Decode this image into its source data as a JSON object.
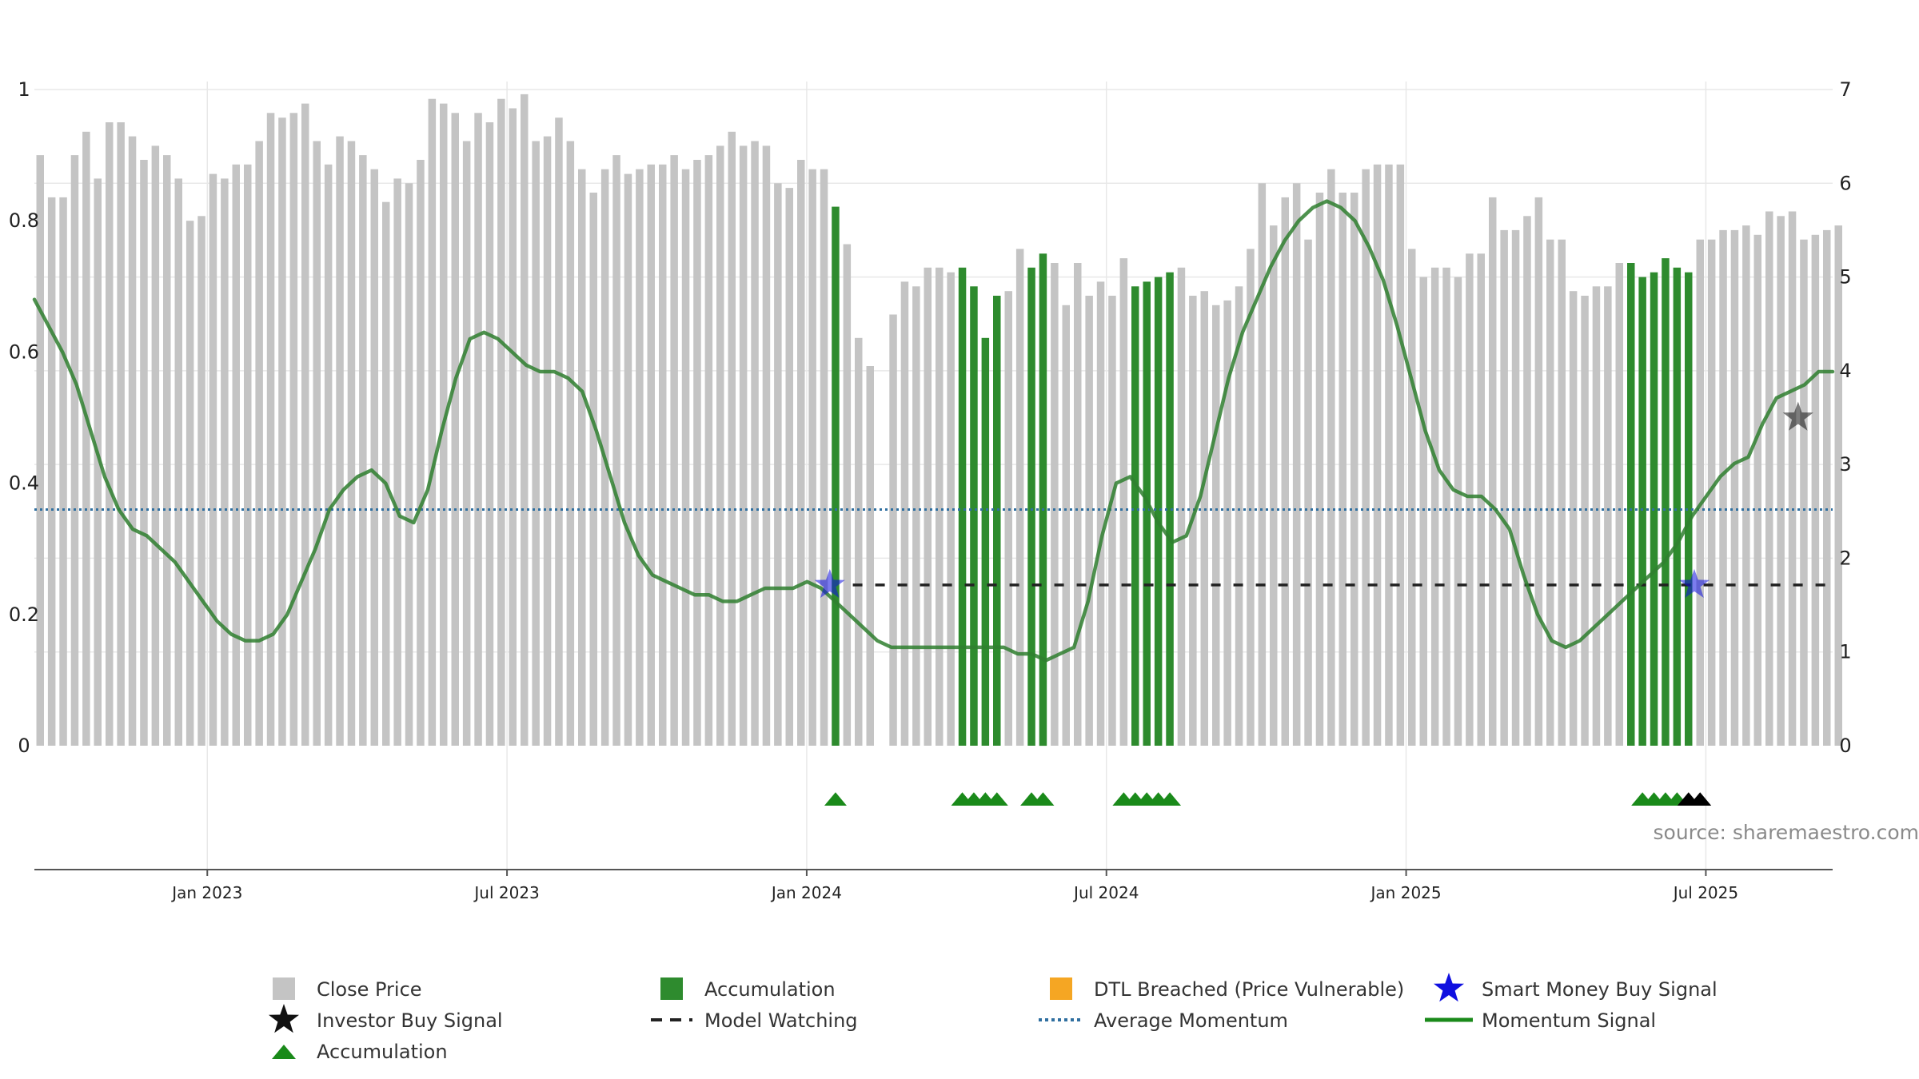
{
  "chart_data": {
    "type": "bar",
    "title": "",
    "xlabel": "",
    "ylabel": "",
    "source_label": "source: sharemaestro.com",
    "left_axis": {
      "ylim": [
        0,
        1
      ],
      "ticks": [
        0,
        0.2,
        0.4,
        0.6,
        0.8,
        1
      ],
      "tick_labels": [
        "0",
        "0.2",
        "0.4",
        "0.6",
        "0.8",
        "1"
      ]
    },
    "right_axis": {
      "ylim": [
        0,
        7
      ],
      "ticks": [
        0,
        1,
        2,
        3,
        4,
        5,
        6,
        7
      ],
      "tick_labels": [
        "0",
        "1",
        "2",
        "3",
        "4",
        "5",
        "6",
        "7"
      ]
    },
    "x_range_weeks": [
      0,
      156
    ],
    "x_ticks": [
      {
        "label": "Jan 2023",
        "week": 15
      },
      {
        "label": "Jul 2023",
        "week": 41
      },
      {
        "label": "Jan 2024",
        "week": 67
      },
      {
        "label": "Jul 2024",
        "week": 93
      },
      {
        "label": "Jan 2025",
        "week": 119
      },
      {
        "label": "Jul 2025",
        "week": 145
      }
    ],
    "grid": true,
    "close_price_values": [
      6.3,
      5.85,
      5.85,
      6.3,
      6.55,
      6.05,
      6.65,
      6.65,
      6.5,
      6.25,
      6.4,
      6.3,
      6.05,
      5.6,
      5.65,
      6.1,
      6.05,
      6.2,
      6.2,
      6.45,
      6.75,
      6.7,
      6.75,
      6.85,
      6.45,
      6.2,
      6.5,
      6.45,
      6.3,
      6.15,
      5.8,
      6.05,
      6.0,
      6.25,
      6.9,
      6.85,
      6.75,
      6.45,
      6.75,
      6.65,
      6.9,
      6.8,
      6.95,
      6.45,
      6.5,
      6.7,
      6.45,
      6.15,
      5.9,
      6.15,
      6.3,
      6.1,
      6.15,
      6.2,
      6.2,
      6.3,
      6.15,
      6.25,
      6.3,
      6.4,
      6.55,
      6.4,
      6.45,
      6.4,
      6.0,
      5.95,
      6.25,
      6.15,
      6.15,
      5.75,
      5.35,
      4.35,
      4.05,
      0,
      4.6,
      4.95,
      4.9,
      5.1,
      5.1,
      5.05,
      5.1,
      4.9,
      4.35,
      4.8,
      4.85,
      5.3,
      5.1,
      5.25,
      5.15,
      4.7,
      5.15,
      4.8,
      4.95,
      4.8,
      5.2,
      4.9,
      4.95,
      5.0,
      5.05,
      5.1,
      4.8,
      4.85,
      4.7,
      4.75,
      4.9,
      5.3,
      6.0,
      5.55,
      5.85,
      6.0,
      5.4,
      5.9,
      6.15,
      5.9,
      5.9,
      6.15,
      6.2,
      6.2,
      6.2,
      5.3,
      5.0,
      5.1,
      5.1,
      5.0,
      5.25,
      5.25,
      5.85,
      5.5,
      5.5,
      5.65,
      5.85,
      5.4,
      5.4,
      4.85,
      4.8,
      4.9,
      4.9,
      5.15,
      5.15,
      5.0,
      5.05,
      5.2,
      5.1,
      5.05,
      5.4,
      5.4,
      5.5,
      5.5,
      5.55,
      5.45,
      5.7,
      5.65,
      5.7,
      5.4,
      5.45,
      5.5,
      5.55
    ],
    "accumulation_bar_weeks": [
      69,
      80,
      81,
      82,
      83,
      86,
      87,
      95,
      96,
      97,
      98,
      138,
      139,
      140,
      141,
      142,
      143
    ],
    "momentum_signal_values": [
      0.68,
      0.64,
      0.6,
      0.55,
      0.48,
      0.41,
      0.36,
      0.33,
      0.32,
      0.3,
      0.28,
      0.25,
      0.22,
      0.19,
      0.17,
      0.16,
      0.16,
      0.17,
      0.2,
      0.25,
      0.3,
      0.36,
      0.39,
      0.41,
      0.42,
      0.4,
      0.35,
      0.34,
      0.39,
      0.48,
      0.56,
      0.62,
      0.63,
      0.62,
      0.6,
      0.58,
      0.57,
      0.57,
      0.56,
      0.54,
      0.48,
      0.41,
      0.34,
      0.29,
      0.26,
      0.25,
      0.24,
      0.23,
      0.23,
      0.22,
      0.22,
      0.23,
      0.24,
      0.24,
      0.24,
      0.25,
      0.24,
      0.22,
      0.2,
      0.18,
      0.16,
      0.15,
      0.15,
      0.15,
      0.15,
      0.15,
      0.15,
      0.15,
      0.15,
      0.15,
      0.14,
      0.14,
      0.13,
      0.14,
      0.15,
      0.22,
      0.32,
      0.4,
      0.41,
      0.38,
      0.34,
      0.31,
      0.32,
      0.38,
      0.47,
      0.56,
      0.63,
      0.68,
      0.73,
      0.77,
      0.8,
      0.82,
      0.83,
      0.82,
      0.8,
      0.76,
      0.71,
      0.64,
      0.56,
      0.48,
      0.42,
      0.39,
      0.38,
      0.38,
      0.36,
      0.33,
      0.26,
      0.2,
      0.16,
      0.15,
      0.16,
      0.18,
      0.2,
      0.22,
      0.24,
      0.26,
      0.28,
      0.31,
      0.35,
      0.38,
      0.41,
      0.43,
      0.44,
      0.49,
      0.53,
      0.54,
      0.55,
      0.57,
      0.57
    ],
    "average_momentum_value": 0.36,
    "model_watching_value": 0.245,
    "model_watching_week_range": [
      71,
      156
    ],
    "smart_money_buy_signals": [
      {
        "week": 69,
        "value": 0.245
      },
      {
        "week": 144,
        "value": 0.245
      }
    ],
    "investor_buy_signals": [
      {
        "week": 153,
        "value": 0.5
      }
    ],
    "accumulation_marker_weeks": [
      69,
      80,
      81,
      82,
      83,
      86,
      87,
      94,
      95,
      96,
      97,
      98,
      139,
      140,
      141,
      142
    ],
    "investor_marker_weeks": [
      143,
      144
    ],
    "colors": {
      "close_price": "#c4c4c4",
      "accumulation": "#2e8b2e",
      "dtl_breached": "#f5a623",
      "smart_money": "#1010e0",
      "investor": "#111111",
      "model_watching": "#222222",
      "average_momentum": "#2f6fa0",
      "momentum_signal": "#2f7f2f",
      "grid": "#e8e8e8"
    },
    "legend": [
      {
        "label": "Close Price",
        "symbol": "square",
        "color": "#c4c4c4"
      },
      {
        "label": "Accumulation",
        "symbol": "square",
        "color": "#2e8b2e"
      },
      {
        "label": "DTL Breached (Price Vulnerable)",
        "symbol": "square",
        "color": "#f5a623"
      },
      {
        "label": "Smart Money Buy Signal",
        "symbol": "star",
        "color": "#1010e0"
      },
      {
        "label": "Investor Buy Signal",
        "symbol": "star",
        "color": "#111111"
      },
      {
        "label": "Model Watching",
        "symbol": "dash",
        "color": "#222222"
      },
      {
        "label": "Average Momentum",
        "symbol": "dot",
        "color": "#2f6fa0"
      },
      {
        "label": "Momentum Signal",
        "symbol": "line",
        "color": "#1a8a1a"
      },
      {
        "label": "Accumulation",
        "symbol": "triangle",
        "color": "#1a8a1a"
      }
    ],
    "legend_position": "bottom"
  }
}
